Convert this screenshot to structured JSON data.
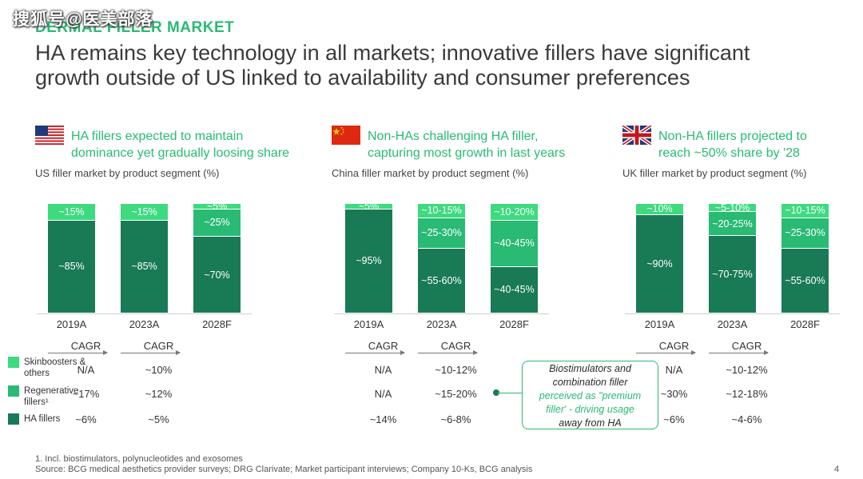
{
  "watermark": "搜狐号@医美部落",
  "kicker": "DERMAL FILLER MARKET",
  "headline": {
    "line1": "HA remains key technology in all markets; innovative fillers have significant",
    "line2": "growth outside of US linked to availability and consumer preferences"
  },
  "colors": {
    "ha": "#197a56",
    "regen": "#29ba74",
    "skin": "#3eda80",
    "accent": "#29ba74"
  },
  "panels": [
    {
      "flag": "us-flag-icon",
      "title1": "HA fillers expected to maintain",
      "title2": "dominance yet gradually loosing share",
      "subtitle": "US filler market by product segment (%)"
    },
    {
      "flag": "china-flag-icon",
      "title1": "Non-HAs challenging HA filler,",
      "title2": "capturing most growth in last years",
      "subtitle": "China filler market by product segment (%)"
    },
    {
      "flag": "uk-flag-icon",
      "title1": "Non-HA fillers projected to",
      "title2": "reach ~50% share by '28",
      "subtitle": "UK filler market by product segment (%)"
    }
  ],
  "chart_data": [
    {
      "type": "bar",
      "title": "US filler market by product segment (%)",
      "categories": [
        "2019A",
        "2023A",
        "2028F"
      ],
      "series": [
        {
          "name": "HA fillers",
          "values": [
            85,
            85,
            70
          ],
          "labels": [
            "~85%",
            "~85%",
            "~70%"
          ]
        },
        {
          "name": "Regenerative fillers¹",
          "values": [
            0,
            0,
            25
          ],
          "labels": [
            "",
            "",
            "~25%"
          ]
        },
        {
          "name": "Skinboosters & others",
          "values": [
            15,
            15,
            5
          ],
          "labels": [
            "~15%",
            "~15%",
            "~5%"
          ]
        }
      ],
      "cagr": {
        "headers": [
          "CAGR",
          "CAGR"
        ],
        "skin": [
          "N/A",
          "~10%"
        ],
        "regen": [
          "~17%",
          "~12%"
        ],
        "ha": [
          "~6%",
          "~5%"
        ]
      }
    },
    {
      "type": "bar",
      "title": "China filler market by product segment (%)",
      "categories": [
        "2019A",
        "2023A",
        "2028F"
      ],
      "series": [
        {
          "name": "HA fillers",
          "values": [
            95,
            57.5,
            42.5
          ],
          "labels": [
            "~95%",
            "~55-60%",
            "~40-45%"
          ]
        },
        {
          "name": "Regenerative fillers¹",
          "values": [
            0,
            27.5,
            42.5
          ],
          "labels": [
            "",
            "~25-30%",
            "~40-45%"
          ]
        },
        {
          "name": "Skinboosters & others",
          "values": [
            5,
            12.5,
            15
          ],
          "labels": [
            "~5%",
            "~10-15%",
            "~10-20%"
          ]
        }
      ],
      "cagr": {
        "headers": [
          "CAGR",
          "CAGR"
        ],
        "skin": [
          "N/A",
          "~10-12%"
        ],
        "regen": [
          "N/A",
          "~15-20%"
        ],
        "ha": [
          "~14%",
          "~6-8%"
        ]
      }
    },
    {
      "type": "bar",
      "title": "UK filler market by product segment (%)",
      "categories": [
        "2019A",
        "2023A",
        "2028F"
      ],
      "series": [
        {
          "name": "HA fillers",
          "values": [
            90,
            72.5,
            57.5
          ],
          "labels": [
            "~90%",
            "~70-75%",
            "~55-60%"
          ]
        },
        {
          "name": "Regenerative fillers¹",
          "values": [
            0,
            22.5,
            27.5
          ],
          "labels": [
            "",
            "~20-25%",
            "~25-30%"
          ]
        },
        {
          "name": "Skinboosters & others",
          "values": [
            10,
            7.5,
            12.5
          ],
          "labels": [
            "~10%",
            "~5-10%",
            "~10-15%"
          ]
        }
      ],
      "cagr": {
        "headers": [
          "CAGR",
          "CAGR"
        ],
        "skin": [
          "N/A",
          "~10-12%"
        ],
        "regen": [
          "~30%",
          "~12-18%"
        ],
        "ha": [
          "~6%",
          "~4-6%"
        ]
      }
    }
  ],
  "legend": {
    "skin": "Skinboosters & others",
    "regen": "Regenerative fillers¹",
    "ha": "HA fillers"
  },
  "callout": {
    "l1": "Biostimulators and",
    "l2": "combination filler",
    "l3": "perceived as \"premium",
    "l4": "filler' - driving usage",
    "l5": "away from HA"
  },
  "footnote": {
    "l1": "1. Incl. biostimulators, polynucleotides and exosomes",
    "l2": "Source: BCG medical aesthetics provider surveys; DRG Clarivate; Market participant interviews; Company 10-Ks, BCG analysis"
  },
  "page_number": "4"
}
